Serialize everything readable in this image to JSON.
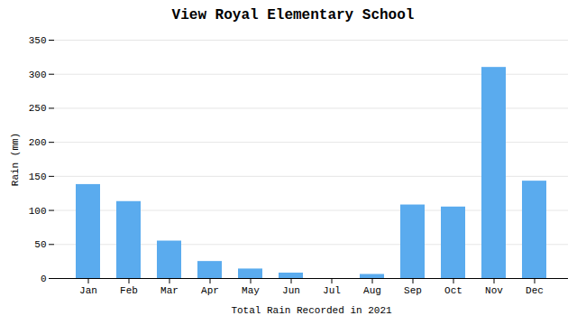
{
  "chart_data": {
    "type": "bar",
    "title": "View Royal Elementary School",
    "xlabel": "Total Rain Recorded in 2021",
    "ylabel": "Rain (mm)",
    "categories": [
      "Jan",
      "Feb",
      "Mar",
      "Apr",
      "May",
      "Jun",
      "Jul",
      "Aug",
      "Sep",
      "Oct",
      "Nov",
      "Dec"
    ],
    "values": [
      138,
      113,
      55,
      25,
      14,
      8,
      0,
      6,
      108,
      105,
      310,
      143
    ],
    "color": "#5aabee",
    "ylim": [
      0,
      350
    ],
    "yticks": [
      0,
      50,
      100,
      150,
      200,
      250,
      300,
      350
    ],
    "grid": true
  }
}
